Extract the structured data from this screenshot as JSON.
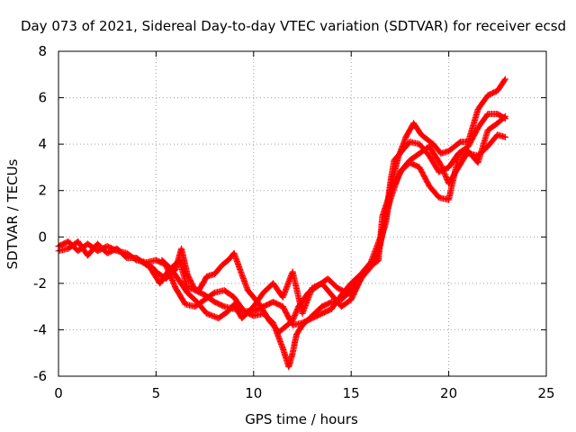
{
  "chart_data": {
    "type": "scatter",
    "title": "Day 073 of 2021, Sidereal Day-to-day VTEC variation (SDTVAR) for receiver ecsd",
    "xlabel": "GPS time / hours",
    "ylabel": "SDTVAR / TECUs",
    "xlim": [
      0,
      25
    ],
    "ylim": [
      -6,
      8
    ],
    "xticks": [
      0,
      5,
      10,
      15,
      20,
      25
    ],
    "yticks": [
      -6,
      -4,
      -2,
      0,
      2,
      4,
      6,
      8
    ],
    "grid": true,
    "marker": "+",
    "color": "#ff0000",
    "series": [
      {
        "points": [
          [
            0,
            -0.4
          ],
          [
            0.5,
            -0.2
          ],
          [
            1,
            -0.6
          ],
          [
            1.5,
            -0.3
          ],
          [
            2,
            -0.6
          ],
          [
            2.5,
            -0.4
          ],
          [
            3,
            -0.6
          ],
          [
            3.5,
            -0.7
          ],
          [
            4,
            -1.0
          ],
          [
            4.5,
            -1.1
          ],
          [
            5,
            -1.0
          ],
          [
            5.5,
            -1.2
          ],
          [
            6,
            -2.2
          ],
          [
            6.5,
            -2.9
          ],
          [
            7,
            -3.0
          ],
          [
            7.5,
            -2.7
          ],
          [
            8,
            -2.4
          ],
          [
            8.5,
            -2.3
          ],
          [
            9,
            -2.6
          ],
          [
            9.5,
            -3.2
          ],
          [
            10,
            -3.4
          ],
          [
            10.5,
            -3.3
          ],
          [
            11,
            -3.7
          ],
          [
            11.5,
            -4.8
          ],
          [
            11.8,
            -5.6
          ],
          [
            12,
            -5.0
          ],
          [
            12.2,
            -4.2
          ],
          [
            12.5,
            -3.8
          ],
          [
            13,
            -3.4
          ],
          [
            13.5,
            -3.0
          ],
          [
            14,
            -2.8
          ],
          [
            14.5,
            -2.7
          ],
          [
            15,
            -2.3
          ],
          [
            15.3,
            -1.9
          ],
          [
            15.6,
            -1.6
          ],
          [
            16,
            -1.2
          ],
          [
            16.3,
            -0.9
          ],
          [
            16.5,
            -0.3
          ],
          [
            16.8,
            1.0
          ],
          [
            17,
            2.3
          ],
          [
            17.2,
            3.3
          ],
          [
            17.5,
            3.6
          ],
          [
            18,
            4.1
          ],
          [
            18.5,
            4.0
          ],
          [
            19,
            3.5
          ],
          [
            19.5,
            2.8
          ],
          [
            20,
            3.0
          ],
          [
            20.5,
            3.6
          ],
          [
            21,
            3.9
          ],
          [
            21.5,
            4.7
          ],
          [
            22,
            5.3
          ],
          [
            22.5,
            5.3
          ],
          [
            22.9,
            5.1
          ]
        ]
      },
      {
        "points": [
          [
            0,
            -0.6
          ],
          [
            0.5,
            -0.5
          ],
          [
            1,
            -0.2
          ],
          [
            1.5,
            -0.8
          ],
          [
            2,
            -0.3
          ],
          [
            2.5,
            -0.7
          ],
          [
            3,
            -0.5
          ],
          [
            3.5,
            -0.9
          ],
          [
            4,
            -0.9
          ],
          [
            4.5,
            -1.2
          ],
          [
            4.8,
            -1.3
          ],
          [
            5,
            -1.5
          ],
          [
            5.5,
            -1.8
          ],
          [
            6,
            -1.4
          ],
          [
            6.3,
            -0.5
          ],
          [
            6.6,
            -1.6
          ],
          [
            7,
            -2.3
          ],
          [
            7.5,
            -2.5
          ],
          [
            8,
            -2.8
          ],
          [
            8.5,
            -3.0
          ],
          [
            9,
            -3.1
          ],
          [
            9.5,
            -3.2
          ],
          [
            10,
            -3.2
          ],
          [
            10.5,
            -3.0
          ],
          [
            11,
            -2.8
          ],
          [
            11.5,
            -3.0
          ],
          [
            12,
            -3.8
          ],
          [
            12.5,
            -3.7
          ],
          [
            13,
            -3.5
          ],
          [
            13.5,
            -3.3
          ],
          [
            14,
            -3.1
          ],
          [
            14.5,
            -2.5
          ],
          [
            15,
            -2.0
          ],
          [
            15.5,
            -1.6
          ],
          [
            16,
            -1.1
          ],
          [
            16.5,
            0.0
          ],
          [
            17,
            1.6
          ],
          [
            17.5,
            2.8
          ],
          [
            18,
            3.2
          ],
          [
            18.5,
            3.0
          ],
          [
            19,
            2.2
          ],
          [
            19.5,
            1.7
          ],
          [
            20,
            1.6
          ],
          [
            20.5,
            3.5
          ],
          [
            21,
            3.6
          ],
          [
            21.5,
            3.5
          ],
          [
            22,
            3.9
          ],
          [
            22.5,
            4.4
          ],
          [
            22.9,
            4.3
          ]
        ]
      },
      {
        "points": [
          [
            5.3,
            -1.0
          ],
          [
            5.8,
            -1.4
          ],
          [
            6.2,
            -1.9
          ],
          [
            6.6,
            -2.4
          ],
          [
            7.1,
            -2.8
          ],
          [
            7.6,
            -3.3
          ],
          [
            8.2,
            -3.5
          ],
          [
            8.7,
            -3.2
          ],
          [
            9,
            -2.9
          ],
          [
            9.4,
            -3.5
          ],
          [
            10,
            -3.0
          ],
          [
            10.5,
            -2.4
          ],
          [
            11.0,
            -2.0
          ],
          [
            11.5,
            -2.6
          ],
          [
            12,
            -1.5
          ],
          [
            12.5,
            -3.3
          ],
          [
            13,
            -2.2
          ],
          [
            13.5,
            -2.0
          ],
          [
            14,
            -2.5
          ],
          [
            14.5,
            -3.0
          ],
          [
            15,
            -2.7
          ],
          [
            15.5,
            -1.8
          ],
          [
            16,
            -1.3
          ],
          [
            16.4,
            -0.5
          ],
          [
            16.8,
            0.7
          ],
          [
            17,
            2.0
          ],
          [
            17.4,
            3.4
          ],
          [
            17.8,
            4.3
          ],
          [
            18.2,
            4.9
          ],
          [
            18.6,
            4.4
          ],
          [
            19.2,
            4.0
          ],
          [
            19.6,
            3.6
          ],
          [
            20,
            3.7
          ],
          [
            20.6,
            4.1
          ],
          [
            21,
            4.1
          ],
          [
            21.5,
            5.5
          ],
          [
            22,
            6.1
          ],
          [
            22.5,
            6.3
          ],
          [
            22.9,
            6.8
          ]
        ]
      },
      {
        "points": [
          [
            4.6,
            -1.2
          ],
          [
            5.2,
            -2.0
          ],
          [
            5.6,
            -1.5
          ],
          [
            6.2,
            -1.0
          ],
          [
            6.6,
            -2.2
          ],
          [
            7.2,
            -2.3
          ],
          [
            7.6,
            -1.7
          ],
          [
            8.0,
            -1.6
          ],
          [
            8.4,
            -1.2
          ],
          [
            8.7,
            -1.0
          ],
          [
            9.0,
            -0.7
          ],
          [
            9.3,
            -1.4
          ],
          [
            9.7,
            -2.3
          ],
          [
            10.3,
            -2.9
          ],
          [
            10.8,
            -3.6
          ],
          [
            11.3,
            -4.1
          ],
          [
            12,
            -3.6
          ],
          [
            12.3,
            -3.0
          ],
          [
            12.8,
            -2.4
          ],
          [
            13.3,
            -2.1
          ],
          [
            13.8,
            -1.8
          ],
          [
            14.3,
            -2.2
          ],
          [
            15,
            -2.5
          ],
          [
            15.8,
            -1.4
          ],
          [
            16.4,
            -1.0
          ],
          [
            16.6,
            0.9
          ],
          [
            17,
            1.9
          ],
          [
            17.6,
            2.9
          ],
          [
            18,
            3.3
          ],
          [
            18.5,
            3.6
          ],
          [
            19,
            3.9
          ],
          [
            19.6,
            3.1
          ],
          [
            20,
            2.3
          ],
          [
            20.5,
            3.0
          ],
          [
            21,
            3.7
          ],
          [
            21.5,
            3.2
          ],
          [
            22,
            4.6
          ],
          [
            22.5,
            4.9
          ],
          [
            22.9,
            5.2
          ]
        ]
      }
    ]
  }
}
